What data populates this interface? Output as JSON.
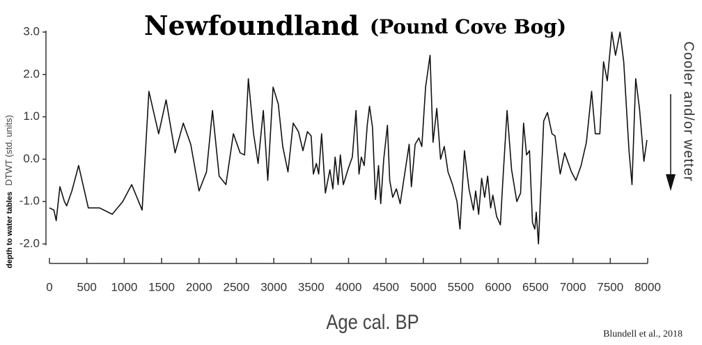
{
  "chart_data": {
    "type": "line",
    "title": "Newfoundland",
    "subtitle": "(Pound Cove Bog)",
    "ylabel": "depth to water tables",
    "ylabel_units": "DTWT (std. units)",
    "xlabel": "Age cal. BP",
    "annotation": "Cooler and/or wetter",
    "source": "Blundell et al., 2018",
    "color": "#111111",
    "grid": false,
    "xlim": [
      0,
      8000
    ],
    "xticks": [
      0,
      500,
      1000,
      1500,
      2000,
      2500,
      3000,
      3500,
      4000,
      4500,
      5000,
      5500,
      6000,
      6500,
      7000,
      7500,
      8000
    ],
    "ylim": [
      -2,
      3
    ],
    "yticks": [
      {
        "value": 3,
        "label": "3.0"
      },
      {
        "value": 2,
        "label": "2.0"
      },
      {
        "value": 1,
        "label": "1.0"
      },
      {
        "value": 0,
        "label": "0.0"
      },
      {
        "value": -1,
        "label": "-1.0"
      },
      {
        "value": -2,
        "label": "-2.0"
      }
    ],
    "x": [
      0,
      60,
      90,
      140,
      200,
      230,
      300,
      390,
      520,
      670,
      840,
      980,
      1100,
      1240,
      1330,
      1460,
      1560,
      1680,
      1790,
      1890,
      2000,
      2100,
      2180,
      2270,
      2360,
      2460,
      2550,
      2610,
      2660,
      2730,
      2790,
      2860,
      2920,
      2990,
      3060,
      3120,
      3190,
      3260,
      3330,
      3390,
      3450,
      3500,
      3530,
      3570,
      3600,
      3640,
      3690,
      3750,
      3790,
      3820,
      3860,
      3890,
      3930,
      4000,
      4050,
      4100,
      4140,
      4170,
      4210,
      4250,
      4280,
      4320,
      4360,
      4400,
      4430,
      4470,
      4520,
      4550,
      4590,
      4640,
      4690,
      4810,
      4840,
      4890,
      4940,
      4980,
      5030,
      5090,
      5130,
      5180,
      5230,
      5280,
      5330,
      5390,
      5450,
      5490,
      5550,
      5610,
      5670,
      5700,
      5740,
      5780,
      5820,
      5860,
      5900,
      5930,
      5980,
      6030,
      6060,
      6120,
      6180,
      6250,
      6300,
      6340,
      6380,
      6420,
      6460,
      6490,
      6510,
      6540,
      6610,
      6660,
      6720,
      6760,
      6830,
      6890,
      6980,
      7040,
      7110,
      7180,
      7250,
      7300,
      7360,
      7410,
      7460,
      7520,
      7570,
      7630,
      7680,
      7750,
      7790,
      7840,
      7890,
      7950,
      7990
    ],
    "series": [
      {
        "name": "DTWT",
        "color": "#111111",
        "values": [
          -1.15,
          -1.2,
          -1.45,
          -0.65,
          -1.0,
          -1.1,
          -0.75,
          -0.15,
          -1.15,
          -1.15,
          -1.3,
          -1.0,
          -0.6,
          -1.2,
          1.6,
          0.6,
          1.4,
          0.15,
          0.85,
          0.35,
          -0.75,
          -0.3,
          1.15,
          -0.4,
          -0.6,
          0.6,
          0.15,
          0.1,
          1.9,
          0.6,
          -0.1,
          1.15,
          -0.5,
          1.7,
          1.3,
          0.3,
          -0.3,
          0.85,
          0.65,
          0.2,
          0.65,
          0.55,
          -0.35,
          -0.1,
          -0.35,
          0.6,
          -0.8,
          -0.25,
          -0.7,
          0.05,
          -0.6,
          0.1,
          -0.6,
          -0.2,
          0.05,
          1.15,
          -0.35,
          0.05,
          -0.15,
          0.8,
          1.25,
          0.75,
          -0.95,
          -0.15,
          -1.05,
          0.0,
          0.8,
          -0.5,
          -0.9,
          -0.7,
          -1.05,
          0.35,
          -0.65,
          0.35,
          0.5,
          0.3,
          1.7,
          2.45,
          0.4,
          1.2,
          0.0,
          0.3,
          -0.3,
          -0.6,
          -1.0,
          -1.65,
          0.2,
          -0.7,
          -1.2,
          -0.75,
          -1.3,
          -0.45,
          -0.9,
          -0.4,
          -1.15,
          -0.85,
          -1.35,
          -1.55,
          -0.6,
          1.15,
          -0.25,
          -1.0,
          -0.8,
          0.85,
          0.1,
          0.2,
          -1.5,
          -1.65,
          -1.25,
          -2.0,
          0.9,
          1.1,
          0.6,
          0.55,
          -0.35,
          0.15,
          -0.3,
          -0.5,
          -0.15,
          0.4,
          1.6,
          0.6,
          0.6,
          2.3,
          1.85,
          3.0,
          2.45,
          3.0,
          2.3,
          0.2,
          -0.6,
          1.9,
          1.2,
          -0.05,
          0.45
        ]
      }
    ]
  }
}
